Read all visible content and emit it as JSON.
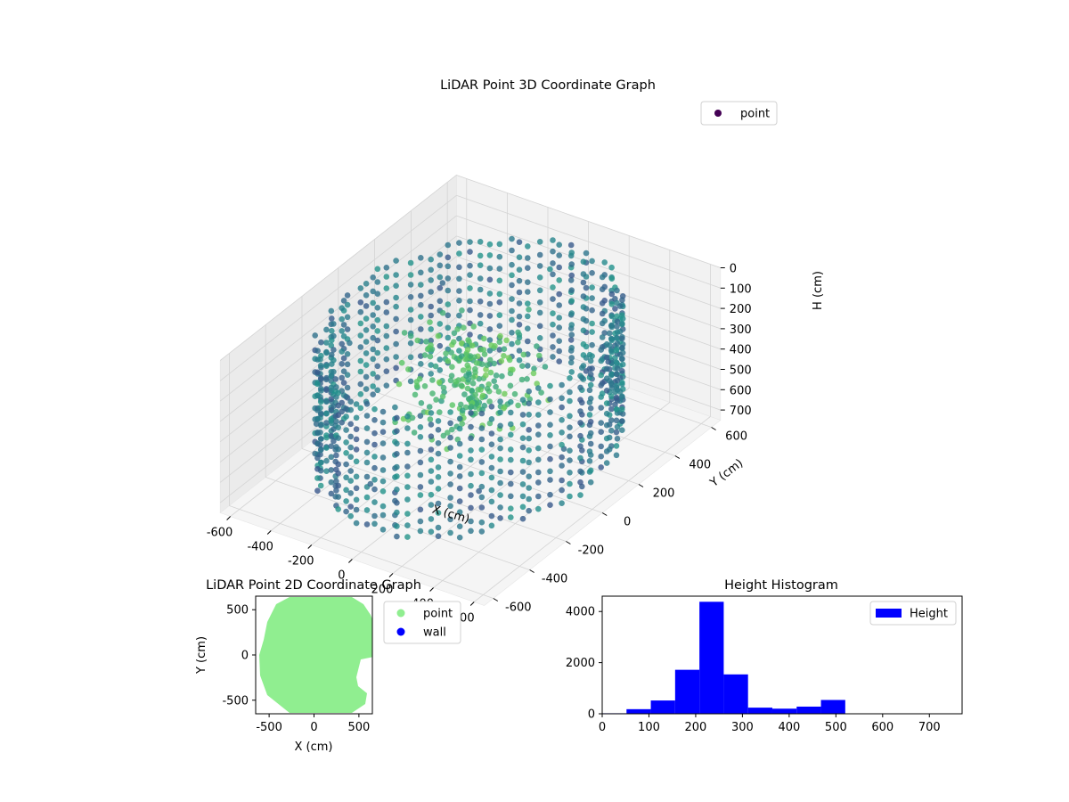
{
  "chart_data": [
    {
      "type": "scatter",
      "projection": "3d",
      "title": "LiDAR Point 3D Coordinate Graph",
      "xlabel": "X (cm)",
      "ylabel": "Y (cm)",
      "zlabel": "H (cm)",
      "xticks": [
        -600,
        -400,
        -200,
        0,
        200,
        400,
        600
      ],
      "yticks": [
        -600,
        -400,
        -200,
        0,
        200,
        400,
        600
      ],
      "zticks": [
        0,
        100,
        200,
        300,
        400,
        500,
        600,
        700
      ],
      "xlim": [
        -650,
        650
      ],
      "ylim": [
        -650,
        650
      ],
      "zlim": [
        0,
        750
      ],
      "z_axis_inverted": true,
      "legend": {
        "labels": [
          "point"
        ],
        "placement": "top-right"
      },
      "colormap": "viridis",
      "grid": true,
      "series": [
        {
          "name": "point",
          "description_shape": "ring of points around the room perimeter, radius about 500-600 cm, heights about 100-700 cm, plus clusters near center",
          "sample_points": [
            {
              "x": 500,
              "y": 200,
              "z": 200
            },
            {
              "x": 300,
              "y": 500,
              "z": 200
            },
            {
              "x": -100,
              "y": 550,
              "z": 200
            },
            {
              "x": -450,
              "y": 350,
              "z": 250
            },
            {
              "x": -550,
              "y": -50,
              "z": 300
            },
            {
              "x": -400,
              "y": -400,
              "z": 400
            },
            {
              "x": 0,
              "y": -550,
              "z": 450
            },
            {
              "x": 400,
              "y": -400,
              "z": 450
            },
            {
              "x": 550,
              "y": -100,
              "z": 400
            },
            {
              "x": 100,
              "y": 100,
              "z": 250
            },
            {
              "x": -100,
              "y": 50,
              "z": 300
            },
            {
              "x": 50,
              "y": -100,
              "z": 400
            }
          ]
        }
      ]
    },
    {
      "type": "scatter",
      "title": "LiDAR Point 2D Coordinate Graph",
      "xlabel": "X (cm)",
      "ylabel": "Y (cm)",
      "xticks": [
        -500,
        0,
        500
      ],
      "yticks": [
        -500,
        0,
        500
      ],
      "xlim": [
        -650,
        650
      ],
      "ylim": [
        -650,
        650
      ],
      "legend": {
        "labels": [
          "point",
          "wall"
        ],
        "placement": "outside-right"
      },
      "series": [
        {
          "name": "point",
          "color": "#90ee90",
          "shape": "filled disc of radius about 600 cm"
        },
        {
          "name": "wall",
          "color": "#0000ff"
        }
      ]
    },
    {
      "type": "bar",
      "subtype": "histogram",
      "title": "Height Histogram",
      "xlim": [
        0,
        770
      ],
      "ylim": [
        0,
        4600
      ],
      "xticks": [
        0,
        100,
        200,
        300,
        400,
        500,
        600,
        700
      ],
      "yticks": [
        0,
        2000,
        4000
      ],
      "legend": {
        "labels": [
          "Height"
        ],
        "placement": "top-right"
      },
      "series": [
        {
          "name": "Height",
          "color": "#0000ff",
          "bin_edges": [
            0,
            52,
            104,
            156,
            208,
            260,
            312,
            364,
            416,
            468,
            520,
            572,
            624,
            676,
            728
          ],
          "counts": [
            20,
            180,
            520,
            1720,
            4380,
            1540,
            240,
            200,
            280,
            540,
            0,
            0,
            0,
            0
          ]
        }
      ]
    }
  ]
}
